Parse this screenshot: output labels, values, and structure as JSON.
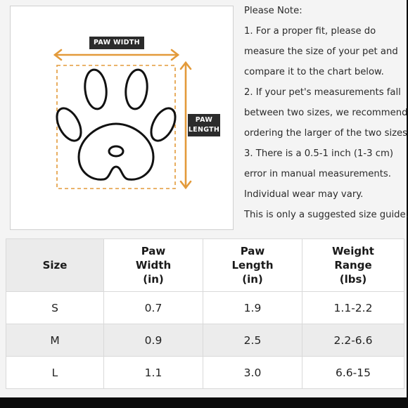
{
  "diagram": {
    "paw_width_label": "PAW WIDTH",
    "paw_length_label": "PAW\nLENGTH",
    "arrow_color": "#e39a3a",
    "icons": [
      "paw-icon",
      "double-arrow-icon"
    ]
  },
  "notes": {
    "lines": [
      "Please Note:",
      "1. For a proper fit, please do",
      "measure the size of your pet and",
      "compare it to the chart below.",
      "2. If your pet's measurements fall",
      "between two sizes, we recommend",
      "ordering the larger of the two sizes.",
      "3. There is a 0.5-1 inch (1-3 cm)",
      "error in manual measurements.",
      "Individual wear may vary.",
      "This is only a suggested size guide."
    ]
  },
  "table": {
    "headers": [
      "Size",
      "Paw\nWidth\n(in)",
      "Paw\nLength\n(in)",
      "Weight\nRange\n(lbs)"
    ],
    "rows": [
      [
        "S",
        "0.7",
        "1.9",
        "1.1-2.2"
      ],
      [
        "M",
        "0.9",
        "2.5",
        "2.2-6.6"
      ],
      [
        "L",
        "1.1",
        "3.0",
        "6.6-15"
      ]
    ]
  }
}
